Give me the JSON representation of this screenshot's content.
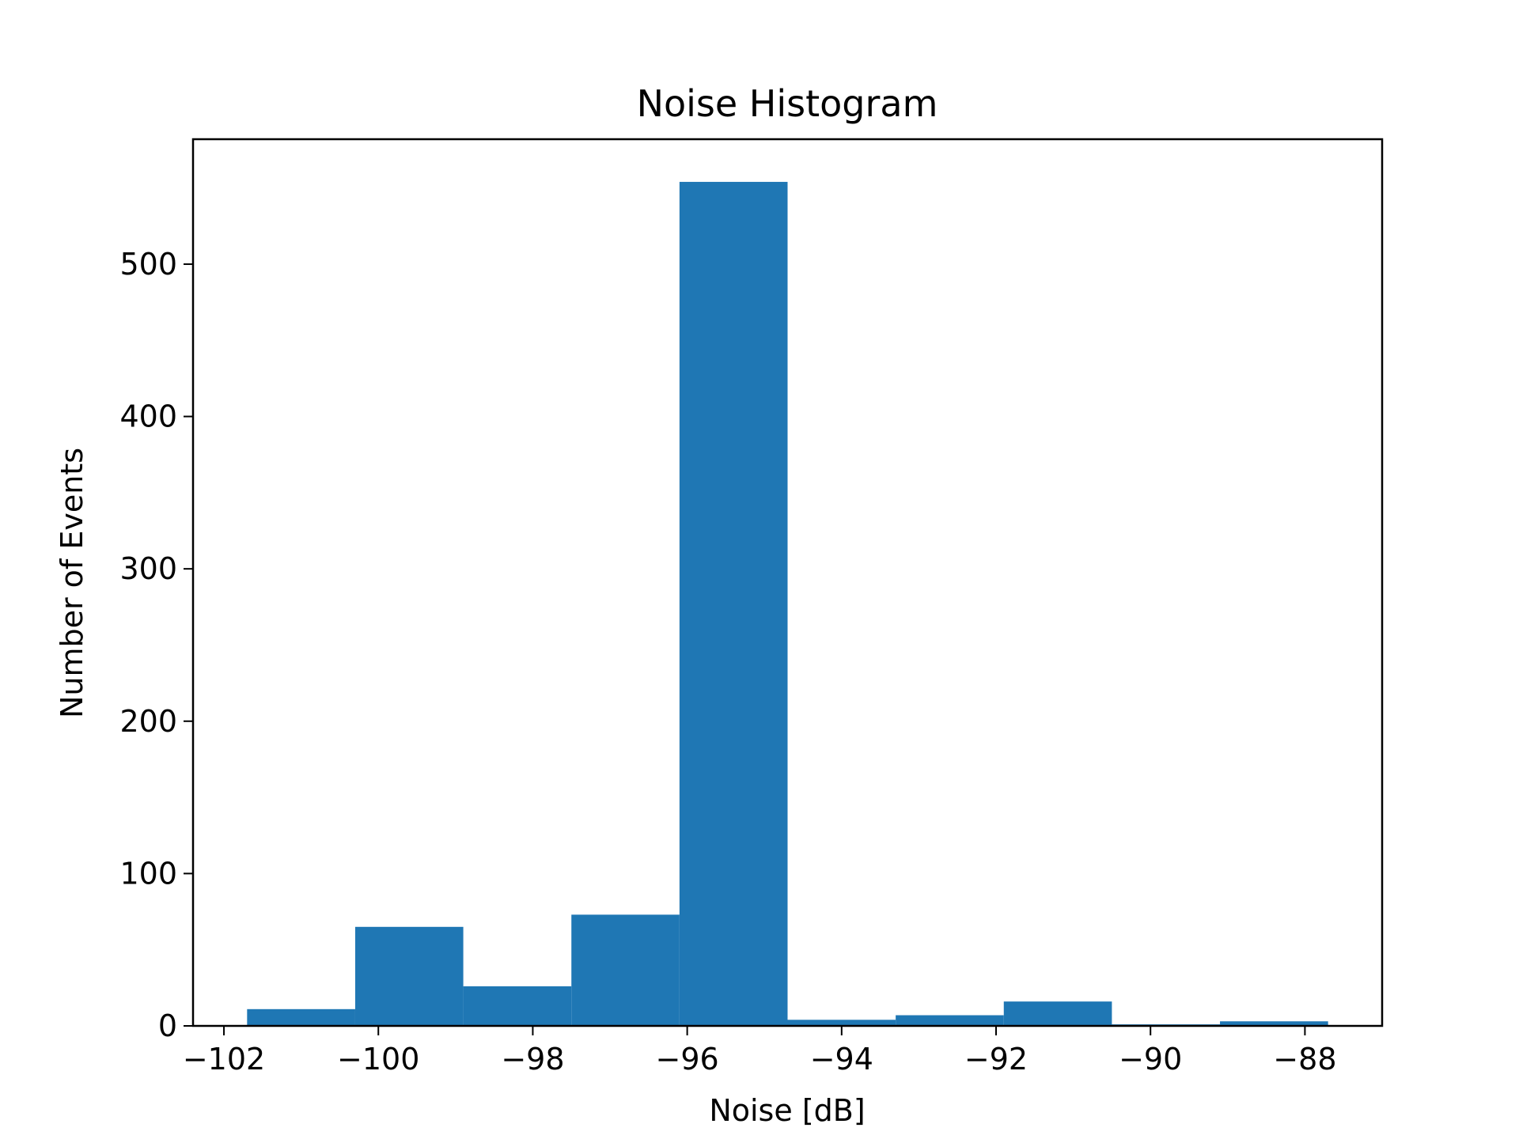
{
  "chart_data": {
    "type": "bar",
    "title": "Noise Histogram",
    "xlabel": "Noise [dB]",
    "ylabel": "Number of Events",
    "bin_edges": [
      -101.7,
      -100.3,
      -98.9,
      -97.5,
      -96.1,
      -94.7,
      -93.3,
      -91.9,
      -90.5,
      -89.1,
      -87.7
    ],
    "values": [
      11,
      65,
      26,
      73,
      554,
      4,
      7,
      16,
      1,
      3
    ],
    "xlim": [
      -102.4,
      -87.0
    ],
    "ylim": [
      0,
      582
    ],
    "xticks": [
      -102,
      -100,
      -98,
      -96,
      -94,
      -92,
      -90,
      -88
    ],
    "xtick_labels": [
      "−102",
      "−100",
      "−98",
      "−96",
      "−94",
      "−92",
      "−90",
      "−88"
    ],
    "yticks": [
      0,
      100,
      200,
      300,
      400,
      500
    ],
    "ytick_labels": [
      "0",
      "100",
      "200",
      "300",
      "400",
      "500"
    ],
    "bar_color": "#1f77b4",
    "grid": false,
    "legend": false
  }
}
